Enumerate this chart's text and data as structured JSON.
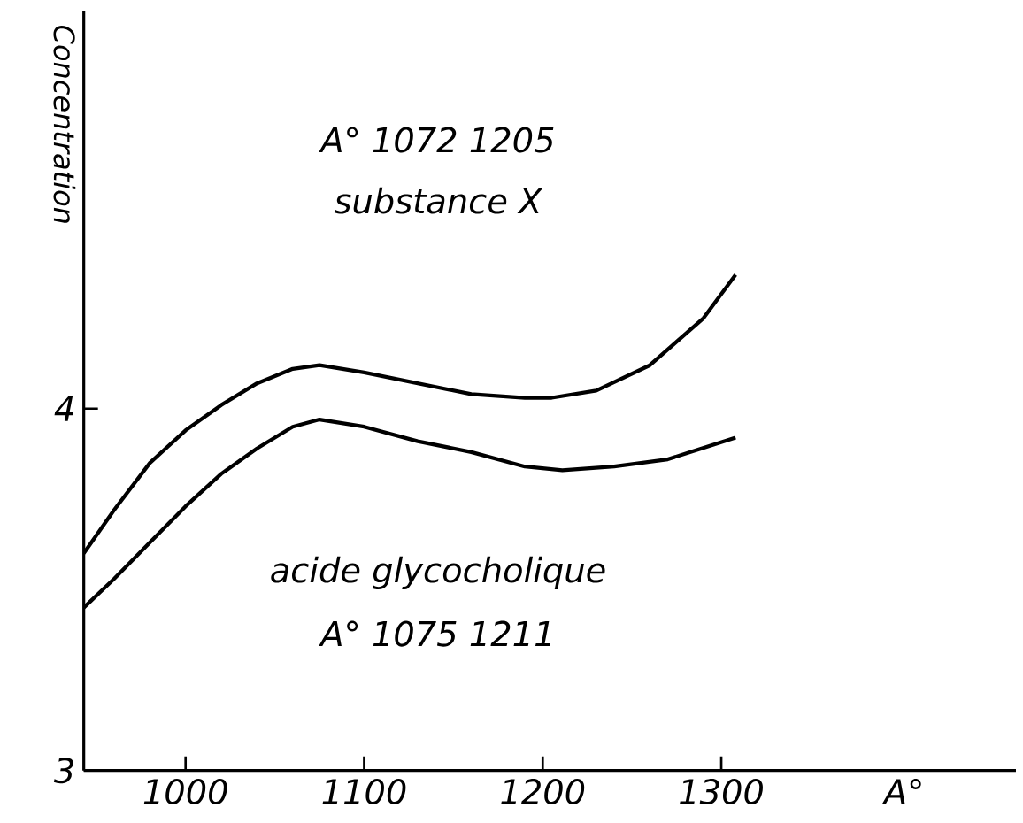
{
  "chart_data": {
    "type": "line",
    "xlabel": "A°",
    "ylabel": "Concentration",
    "annotations": [
      "A° 1072   1205",
      "substance X",
      "acide glycocholique",
      "A° 1075   1211"
    ],
    "xlim": [
      943,
      1465
    ],
    "ylim": [
      3,
      5.1
    ],
    "xticks": [
      1000,
      1100,
      1200,
      1300
    ],
    "yticks": [
      3,
      4
    ],
    "grid": false,
    "marker": "none",
    "line_style": "solid",
    "series": [
      {
        "color": "#000000",
        "x": [
          943,
          960,
          980,
          1000,
          1020,
          1040,
          1060,
          1075,
          1100,
          1130,
          1160,
          1190,
          1205,
          1230,
          1260,
          1290,
          1308
        ],
        "values": [
          3.6,
          3.72,
          3.85,
          3.94,
          4.01,
          4.07,
          4.11,
          4.12,
          4.1,
          4.07,
          4.04,
          4.03,
          4.03,
          4.05,
          4.12,
          4.25,
          4.37
        ]
      },
      {
        "color": "#000000",
        "x": [
          943,
          960,
          980,
          1000,
          1020,
          1040,
          1060,
          1075,
          1100,
          1130,
          1160,
          1190,
          1211,
          1240,
          1270,
          1308
        ],
        "values": [
          3.45,
          3.53,
          3.63,
          3.73,
          3.82,
          3.89,
          3.95,
          3.97,
          3.95,
          3.91,
          3.88,
          3.84,
          3.83,
          3.84,
          3.86,
          3.92
        ]
      }
    ]
  }
}
